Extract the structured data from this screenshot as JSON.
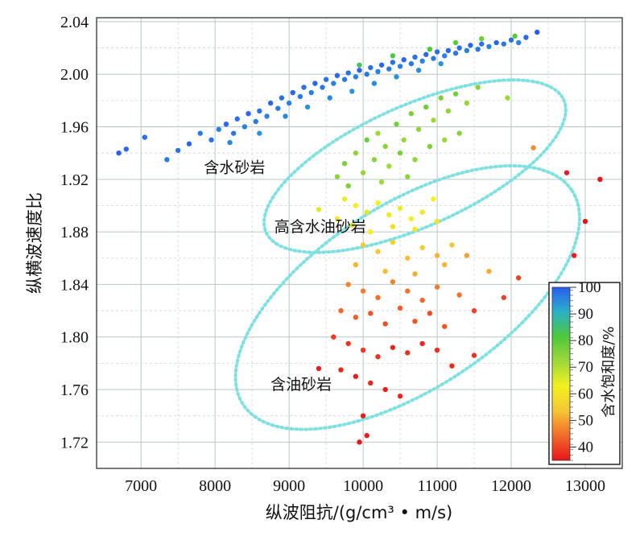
{
  "chart_data": {
    "type": "scatter",
    "title": "",
    "xlabel": "纵波阻抗/(g/cm³ • m/s)",
    "ylabel": "纵横波速度比",
    "xlim": [
      6400,
      13500
    ],
    "ylim": [
      1.7,
      2.043
    ],
    "xticks": [
      "7000",
      "8000",
      "9000",
      "10000",
      "11000",
      "12000",
      "13000"
    ],
    "yticks": [
      "1.72",
      "1.76",
      "1.80",
      "1.84",
      "1.88",
      "1.92",
      "1.96",
      "2.00",
      "2.04"
    ],
    "grid": true,
    "colorbar": {
      "title": "含水饱和度/%",
      "range": [
        35,
        100
      ],
      "ticks": [
        "40",
        "50",
        "60",
        "70",
        "80",
        "90",
        "100"
      ],
      "colors": [
        "#e8141b",
        "#f26a2a",
        "#f5c535",
        "#f2f21e",
        "#9fd83a",
        "#4ec83a",
        "#2ab0c8",
        "#2a5ef0"
      ]
    },
    "annotations": [
      {
        "text": "含水砂岩",
        "x": 7850,
        "y": 1.925
      },
      {
        "text": "高含水油砂岩",
        "x": 8800,
        "y": 1.88
      },
      {
        "text": "含油砂岩",
        "x": 8750,
        "y": 1.76
      }
    ],
    "ellipses": [
      {
        "cx": 10700,
        "cy": 1.93,
        "rx": 2200,
        "ry": 0.046,
        "angle_deg": -24,
        "color": "#7fe0e0"
      },
      {
        "cx": 10600,
        "cy": 1.83,
        "rx": 2650,
        "ry": 0.07,
        "angle_deg": -33,
        "color": "#7fe0e0"
      }
    ],
    "series": [
      {
        "points": [
          [
            6700,
            1.94,
            100
          ],
          [
            6800,
            1.943,
            99
          ],
          [
            7050,
            1.952,
            98
          ],
          [
            7350,
            1.935,
            97
          ],
          [
            7500,
            1.942,
            98
          ],
          [
            7650,
            1.947,
            99
          ],
          [
            7800,
            1.955,
            97
          ],
          [
            7950,
            1.95,
            98
          ],
          [
            8050,
            1.958,
            96
          ],
          [
            8150,
            1.962,
            99
          ],
          [
            8250,
            1.955,
            97
          ],
          [
            8300,
            1.966,
            98
          ],
          [
            8400,
            1.96,
            96
          ],
          [
            8450,
            1.97,
            99
          ],
          [
            8550,
            1.964,
            97
          ],
          [
            8600,
            1.972,
            98
          ],
          [
            8700,
            1.968,
            96
          ],
          [
            8750,
            1.978,
            99
          ],
          [
            8850,
            1.974,
            97
          ],
          [
            8900,
            1.982,
            98
          ],
          [
            9000,
            1.978,
            96
          ],
          [
            9050,
            1.986,
            99
          ],
          [
            9150,
            1.983,
            97
          ],
          [
            9200,
            1.99,
            98
          ],
          [
            9300,
            1.986,
            96
          ],
          [
            9350,
            1.993,
            99
          ],
          [
            9450,
            1.99,
            97
          ],
          [
            9500,
            1.996,
            98
          ],
          [
            9600,
            1.993,
            96
          ],
          [
            9650,
            1.999,
            99
          ],
          [
            9750,
            1.996,
            97
          ],
          [
            9800,
            2.001,
            98
          ],
          [
            9900,
            1.998,
            96
          ],
          [
            9950,
            2.003,
            99
          ],
          [
            10050,
            2.0,
            97
          ],
          [
            10100,
            2.005,
            98
          ],
          [
            10200,
            2.002,
            96
          ],
          [
            10250,
            2.007,
            99
          ],
          [
            10350,
            2.004,
            97
          ],
          [
            10400,
            2.009,
            98
          ],
          [
            10500,
            2.006,
            96
          ],
          [
            10550,
            2.011,
            99
          ],
          [
            10650,
            2.008,
            97
          ],
          [
            10700,
            2.013,
            98
          ],
          [
            10800,
            2.01,
            96
          ],
          [
            10850,
            2.015,
            99
          ],
          [
            10950,
            2.012,
            97
          ],
          [
            11000,
            2.017,
            98
          ],
          [
            11100,
            2.014,
            96
          ],
          [
            11150,
            2.018,
            99
          ],
          [
            11250,
            2.016,
            97
          ],
          [
            11300,
            2.02,
            98
          ],
          [
            11400,
            2.018,
            96
          ],
          [
            11450,
            2.022,
            99
          ],
          [
            11550,
            2.019,
            97
          ],
          [
            11600,
            2.023,
            98
          ],
          [
            11700,
            2.021,
            96
          ],
          [
            11800,
            2.024,
            99
          ],
          [
            11900,
            2.023,
            97
          ],
          [
            12000,
            2.026,
            98
          ],
          [
            12100,
            2.024,
            96
          ],
          [
            12200,
            2.028,
            99
          ],
          [
            12350,
            2.032,
            100
          ],
          [
            8200,
            1.948,
            95
          ],
          [
            8600,
            1.955,
            94
          ],
          [
            8950,
            1.968,
            95
          ],
          [
            9250,
            1.975,
            94
          ],
          [
            9550,
            1.982,
            95
          ],
          [
            9850,
            1.987,
            94
          ],
          [
            10150,
            1.993,
            95
          ],
          [
            10450,
            1.998,
            94
          ],
          [
            10750,
            2.003,
            95
          ],
          [
            11050,
            2.008,
            94
          ],
          [
            10900,
            2.019,
            82
          ],
          [
            11250,
            2.024,
            80
          ],
          [
            11600,
            2.027,
            78
          ],
          [
            12050,
            2.029,
            80
          ],
          [
            9950,
            2.007,
            84
          ],
          [
            10400,
            2.014,
            82
          ],
          [
            9750,
            1.932,
            76
          ],
          [
            9900,
            1.94,
            74
          ],
          [
            10050,
            1.95,
            78
          ],
          [
            10200,
            1.955,
            72
          ],
          [
            10300,
            1.945,
            75
          ],
          [
            10450,
            1.962,
            77
          ],
          [
            10550,
            1.95,
            73
          ],
          [
            10650,
            1.97,
            76
          ],
          [
            10750,
            1.958,
            74
          ],
          [
            10850,
            1.975,
            78
          ],
          [
            10950,
            1.965,
            72
          ],
          [
            11050,
            1.982,
            76
          ],
          [
            11150,
            1.972,
            74
          ],
          [
            11250,
            1.985,
            77
          ],
          [
            11400,
            1.978,
            73
          ],
          [
            11550,
            1.99,
            75
          ],
          [
            11950,
            1.982,
            72
          ],
          [
            9650,
            1.922,
            74
          ],
          [
            9800,
            1.915,
            76
          ],
          [
            10000,
            1.925,
            73
          ],
          [
            10150,
            1.935,
            75
          ],
          [
            10350,
            1.93,
            72
          ],
          [
            10500,
            1.94,
            77
          ],
          [
            10700,
            1.935,
            74
          ],
          [
            10900,
            1.945,
            76
          ],
          [
            11100,
            1.95,
            73
          ],
          [
            11300,
            1.955,
            75
          ],
          [
            10250,
            1.918,
            72
          ],
          [
            10600,
            1.922,
            74
          ],
          [
            9750,
            1.905,
            64
          ],
          [
            9900,
            1.9,
            62
          ],
          [
            10050,
            1.895,
            65
          ],
          [
            10200,
            1.902,
            63
          ],
          [
            10350,
            1.893,
            61
          ],
          [
            10500,
            1.898,
            64
          ],
          [
            10650,
            1.89,
            62
          ],
          [
            10800,
            1.895,
            60
          ],
          [
            10950,
            1.905,
            63
          ],
          [
            9650,
            1.89,
            61
          ],
          [
            9850,
            1.885,
            60
          ],
          [
            10100,
            1.88,
            62
          ],
          [
            10400,
            1.884,
            59
          ],
          [
            10700,
            1.882,
            61
          ],
          [
            11000,
            1.888,
            60
          ],
          [
            9400,
            1.897,
            65
          ],
          [
            10000,
            1.87,
            55
          ],
          [
            10200,
            1.865,
            54
          ],
          [
            10400,
            1.872,
            56
          ],
          [
            10600,
            1.86,
            53
          ],
          [
            10800,
            1.868,
            55
          ],
          [
            11000,
            1.862,
            52
          ],
          [
            11200,
            1.87,
            54
          ],
          [
            9900,
            1.855,
            52
          ],
          [
            10300,
            1.85,
            53
          ],
          [
            10700,
            1.848,
            51
          ],
          [
            11100,
            1.855,
            52
          ],
          [
            11400,
            1.862,
            50
          ],
          [
            11700,
            1.85,
            51
          ],
          [
            12300,
            1.944,
            48
          ],
          [
            9800,
            1.84,
            47
          ],
          [
            10000,
            1.835,
            46
          ],
          [
            10200,
            1.83,
            45
          ],
          [
            10400,
            1.842,
            47
          ],
          [
            10600,
            1.835,
            45
          ],
          [
            10800,
            1.828,
            44
          ],
          [
            11000,
            1.838,
            46
          ],
          [
            11300,
            1.832,
            45
          ],
          [
            9700,
            1.82,
            44
          ],
          [
            9900,
            1.815,
            43
          ],
          [
            10100,
            1.818,
            42
          ],
          [
            10300,
            1.81,
            41
          ],
          [
            10500,
            1.822,
            43
          ],
          [
            10700,
            1.812,
            42
          ],
          [
            10900,
            1.818,
            41
          ],
          [
            11100,
            1.808,
            42
          ],
          [
            11500,
            1.82,
            40
          ],
          [
            11900,
            1.83,
            40
          ],
          [
            12100,
            1.845,
            40
          ],
          [
            9600,
            1.8,
            39
          ],
          [
            9800,
            1.795,
            38
          ],
          [
            10000,
            1.79,
            39
          ],
          [
            10200,
            1.785,
            38
          ],
          [
            10400,
            1.792,
            37
          ],
          [
            10600,
            1.788,
            38
          ],
          [
            10800,
            1.795,
            37
          ],
          [
            11000,
            1.79,
            38
          ],
          [
            9700,
            1.775,
            37
          ],
          [
            9900,
            1.77,
            36
          ],
          [
            10100,
            1.765,
            37
          ],
          [
            10300,
            1.76,
            36
          ],
          [
            10500,
            1.755,
            37
          ],
          [
            10000,
            1.74,
            36
          ],
          [
            10050,
            1.725,
            36
          ],
          [
            9950,
            1.72,
            35
          ],
          [
            9400,
            1.776,
            36
          ],
          [
            11200,
            1.778,
            37
          ],
          [
            11500,
            1.786,
            38
          ],
          [
            12850,
            1.862,
            36
          ],
          [
            13000,
            1.888,
            35
          ],
          [
            12750,
            1.925,
            36
          ],
          [
            13200,
            1.92,
            35
          ]
        ]
      }
    ]
  }
}
